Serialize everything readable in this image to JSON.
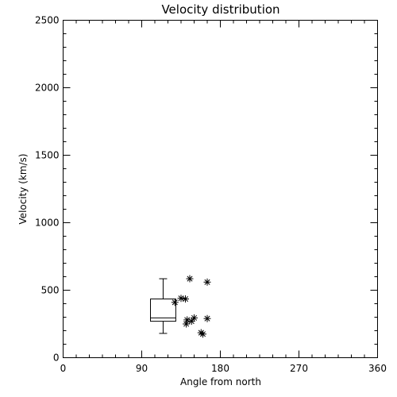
{
  "chart_data": {
    "type": "scatter",
    "title": "Velocity distribution",
    "xlabel": "Angle from north",
    "ylabel": "Velocity (km/s)",
    "xlim": [
      0,
      360
    ],
    "ylim": [
      0,
      2500
    ],
    "xticks": [
      0,
      90,
      180,
      270,
      360
    ],
    "yticks": [
      0,
      500,
      1000,
      1500,
      2000,
      2500
    ],
    "grid": false,
    "boxplot": {
      "x_left": 100,
      "x_right": 129,
      "whisker_min": 180,
      "q1": 270,
      "median": 295,
      "q3": 435,
      "whisker_max": 585
    },
    "points": [
      {
        "x": 145,
        "y": 585
      },
      {
        "x": 165,
        "y": 560
      },
      {
        "x": 135,
        "y": 440
      },
      {
        "x": 140,
        "y": 435
      },
      {
        "x": 128,
        "y": 410
      },
      {
        "x": 142,
        "y": 280
      },
      {
        "x": 150,
        "y": 295
      },
      {
        "x": 165,
        "y": 290
      },
      {
        "x": 147,
        "y": 270
      },
      {
        "x": 141,
        "y": 250
      },
      {
        "x": 158,
        "y": 185
      },
      {
        "x": 160,
        "y": 175
      }
    ]
  }
}
